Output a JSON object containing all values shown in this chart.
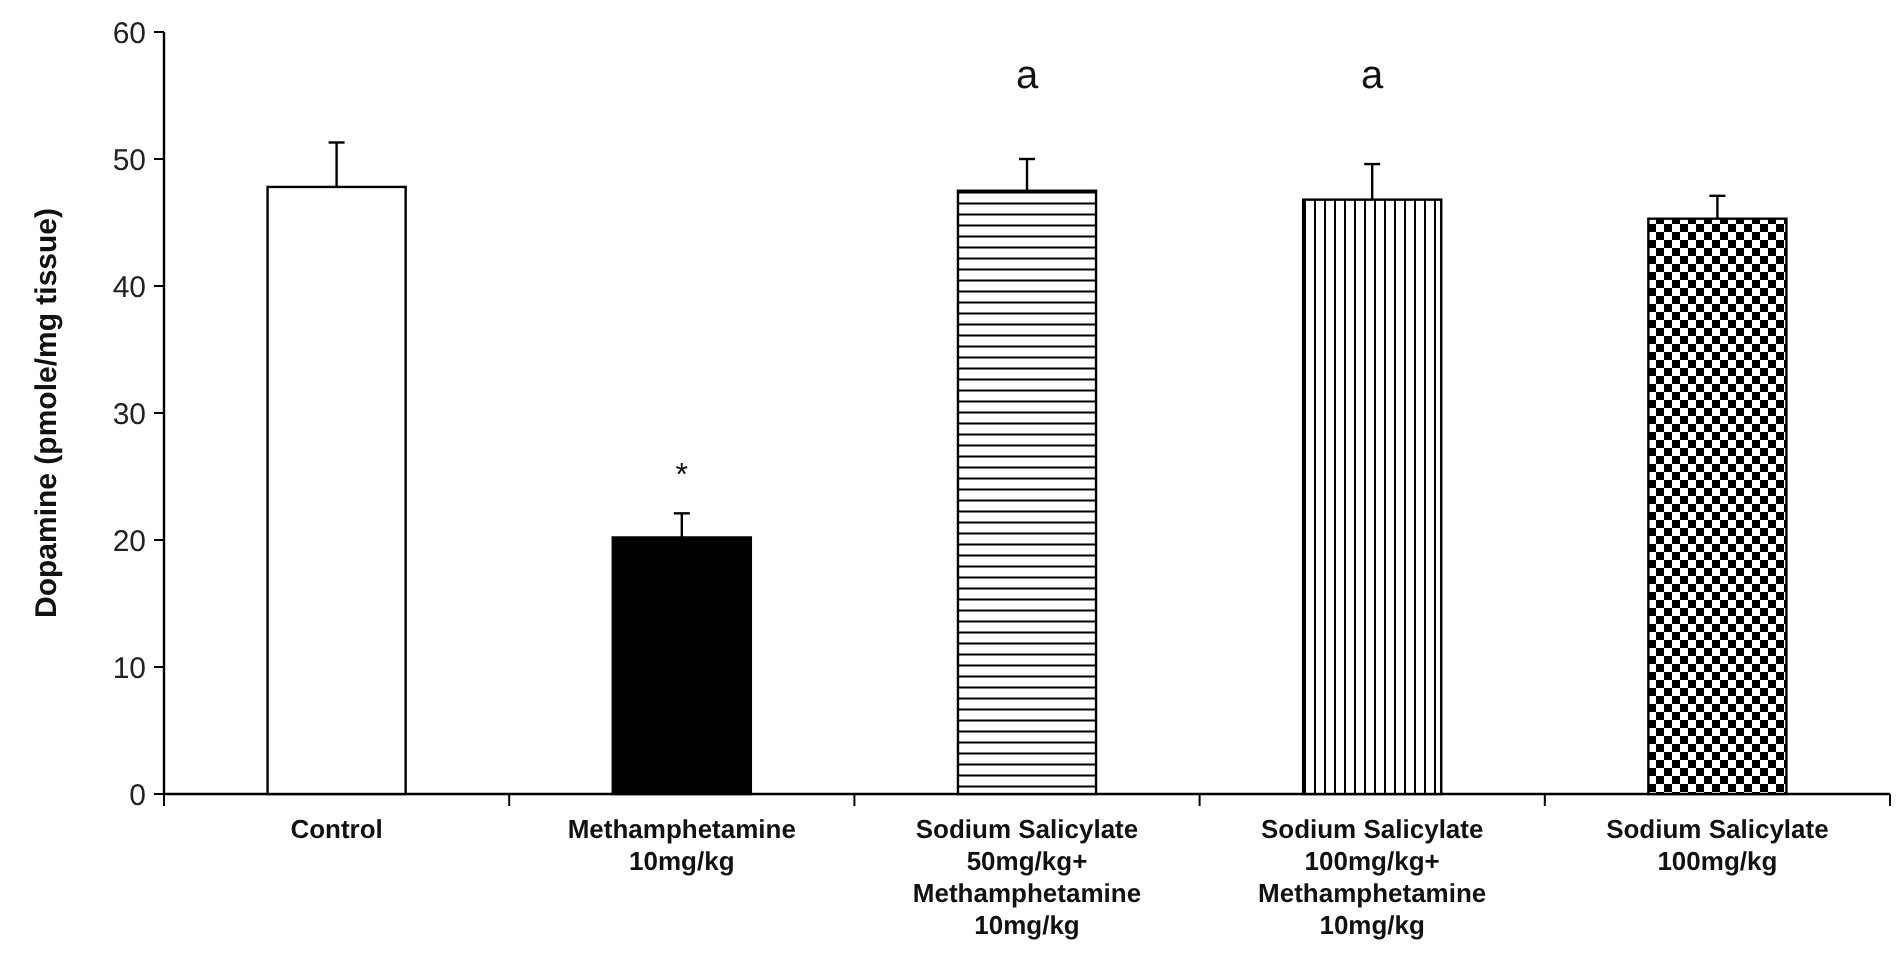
{
  "chart_data": {
    "type": "bar",
    "ylabel": "Dopamine (pmole/mg tissue)",
    "categories": [
      "Control",
      "Methamphetamine\n10mg/kg",
      "Sodium Salicylate\n50mg/kg+\nMethamphetamine\n10mg/kg",
      "Sodium Salicylate\n100mg/kg+\nMethamphetamine\n10mg/kg",
      "Sodium Salicylate\n100mg/kg"
    ],
    "values": [
      47.8,
      20.2,
      47.5,
      46.8,
      45.3
    ],
    "errors": [
      3.5,
      1.9,
      2.5,
      2.8,
      1.8
    ],
    "colors": [
      "#ffffff",
      "#000000",
      "#000000",
      "#000000",
      "#000000"
    ],
    "ylim": [
      0,
      60
    ],
    "yticks": [
      0,
      10,
      20,
      30,
      40,
      50,
      60
    ],
    "grid": false,
    "annotations": [
      "*",
      "a",
      "a"
    ]
  }
}
